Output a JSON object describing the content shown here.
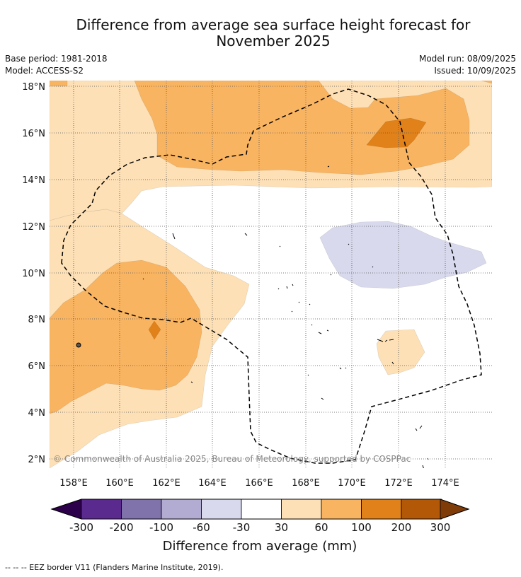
{
  "header": {
    "title_line1": "Difference from average sea surface height forecast for",
    "title_line2": "November 2025",
    "base_period": "Base period: 1981-2018",
    "model": "Model: ACCESS-S2",
    "model_run": "Model run: 08/09/2025",
    "issued": "Issued: 10/09/2025"
  },
  "map": {
    "lat_labels": [
      "18°N",
      "16°N",
      "14°N",
      "12°N",
      "10°N",
      "8°N",
      "6°N",
      "4°N",
      "2°N"
    ],
    "lon_labels": [
      "158°E",
      "160°E",
      "162°E",
      "164°E",
      "166°E",
      "168°E",
      "170°E",
      "172°E",
      "174°E"
    ],
    "copyright": "© Commonwealth of Australia 2025, Bureau of Meteorology, supported by COSPPac",
    "colors": {
      "pos_30_60": "#fde0b6",
      "pos_60_100": "#f9b461",
      "pos_100_200": "#e0811a",
      "neg_30_60": "#d8d9ec",
      "land_outline": "#000000"
    }
  },
  "colorbar": {
    "tick_labels": [
      "-300",
      "-200",
      "-100",
      "-60",
      "-30",
      "30",
      "60",
      "100",
      "200",
      "300"
    ],
    "colors": [
      "#2d004b",
      "#5b2a8f",
      "#8073ac",
      "#b2abd2",
      "#d8d9ec",
      "#ffffff",
      "#fde0b6",
      "#f9b461",
      "#e0811a",
      "#b35806",
      "#7f3b08"
    ],
    "title": "Difference from average (mm)"
  },
  "footer": {
    "eez_note": "--  --  -- EEZ border V11 (Flanders Marine Institute, 2019)."
  }
}
